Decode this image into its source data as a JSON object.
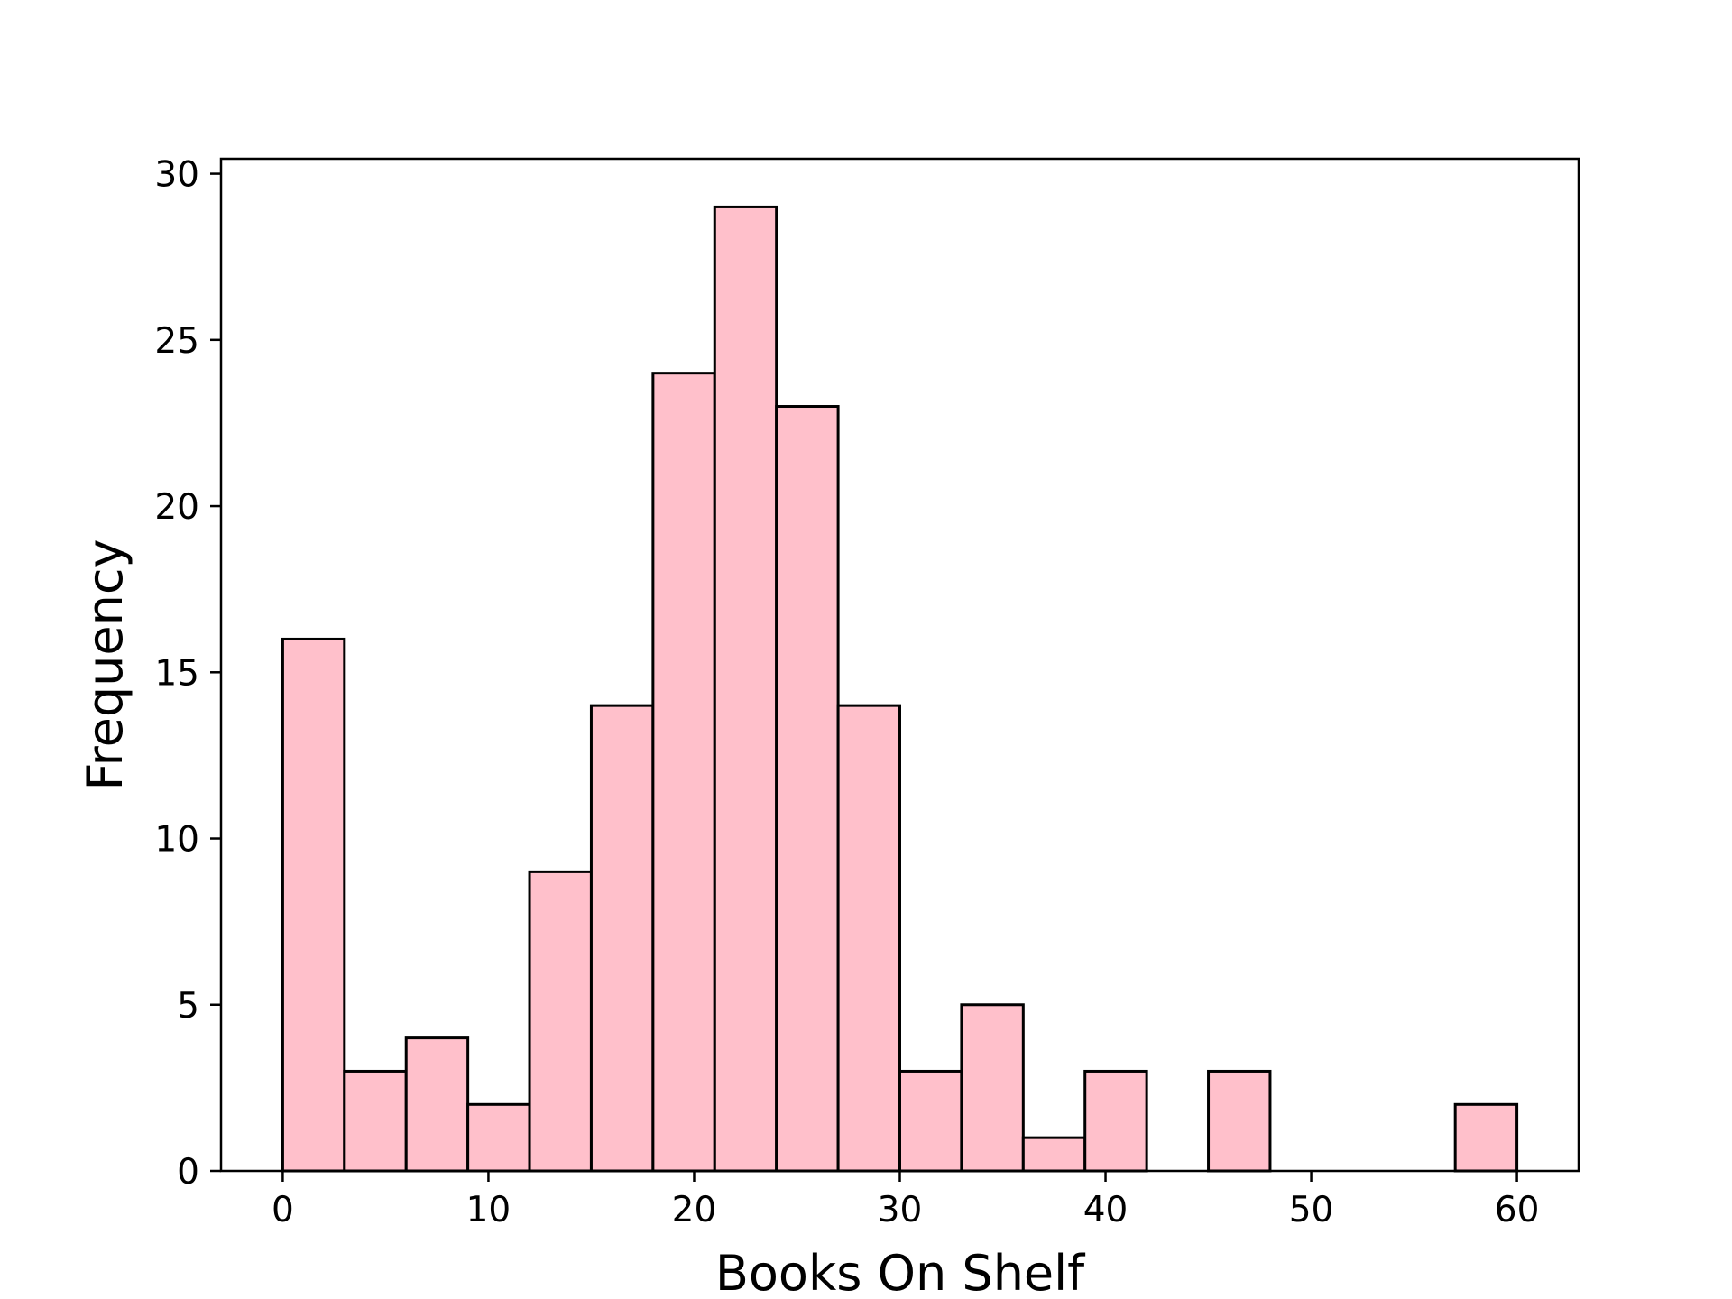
{
  "chart_data": {
    "type": "histogram",
    "title": "",
    "xlabel": "Books On Shelf",
    "ylabel": "Frequency",
    "bin_edges": [
      0,
      3,
      6,
      9,
      12,
      15,
      18,
      21,
      24,
      27,
      30,
      33,
      36,
      39,
      42,
      45,
      48,
      51,
      54,
      57,
      60
    ],
    "counts": [
      16,
      3,
      4,
      2,
      9,
      14,
      24,
      29,
      23,
      14,
      3,
      5,
      1,
      3,
      0,
      3,
      0,
      0,
      0,
      2
    ],
    "xlim": [
      -3,
      63
    ],
    "ylim": [
      0,
      30.45
    ],
    "xticks": [
      0,
      10,
      20,
      30,
      40,
      50,
      60
    ],
    "yticks": [
      0,
      5,
      10,
      15,
      20,
      25,
      30
    ],
    "bar_fill": "#ffc0cb",
    "bar_edge": "#000000",
    "grid": false,
    "legend": "none"
  }
}
